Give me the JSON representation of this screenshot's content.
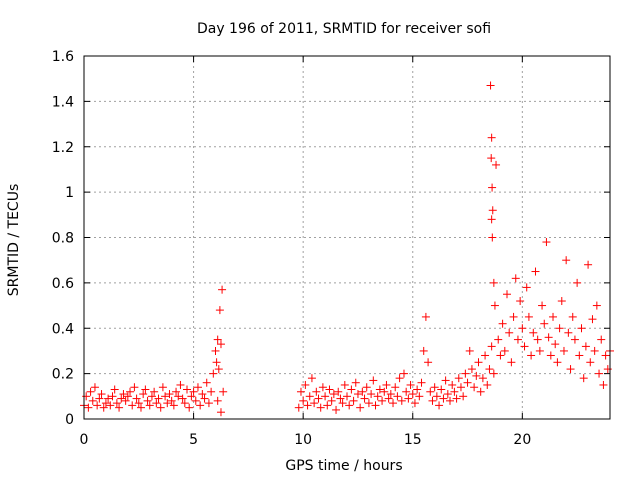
{
  "chart_data": {
    "type": "scatter",
    "title": "Day 196 of 2011, SRMTID for receiver sofi",
    "xlabel": "GPS time / hours",
    "ylabel": "SRMTID / TECUs",
    "xlim": [
      0,
      24
    ],
    "ylim": [
      0,
      1.6
    ],
    "grid": true,
    "marker": "+",
    "color": "#ff0000",
    "x_ticks": [
      {
        "value": 0,
        "label": "0"
      },
      {
        "value": 5,
        "label": "5"
      },
      {
        "value": 10,
        "label": "10"
      },
      {
        "value": 15,
        "label": "15"
      },
      {
        "value": 20,
        "label": "20"
      }
    ],
    "y_ticks": [
      {
        "value": 0,
        "label": "0"
      },
      {
        "value": 0.2,
        "label": "0.2"
      },
      {
        "value": 0.4,
        "label": "0.4"
      },
      {
        "value": 0.6,
        "label": "0.6"
      },
      {
        "value": 0.8,
        "label": "0.8"
      },
      {
        "value": 1,
        "label": "1"
      },
      {
        "value": 1.2,
        "label": "1.2"
      },
      {
        "value": 1.4,
        "label": "1.4"
      },
      {
        "value": 1.6,
        "label": "1.6"
      }
    ],
    "series": [
      {
        "name": "SRMTID",
        "points": [
          [
            0.0,
            0.06
          ],
          [
            0.1,
            0.1
          ],
          [
            0.2,
            0.05
          ],
          [
            0.3,
            0.12
          ],
          [
            0.4,
            0.08
          ],
          [
            0.5,
            0.14
          ],
          [
            0.6,
            0.06
          ],
          [
            0.7,
            0.09
          ],
          [
            0.8,
            0.11
          ],
          [
            0.9,
            0.05
          ],
          [
            1.0,
            0.07
          ],
          [
            1.1,
            0.09
          ],
          [
            1.2,
            0.06
          ],
          [
            1.3,
            0.1
          ],
          [
            1.4,
            0.13
          ],
          [
            1.5,
            0.07
          ],
          [
            1.6,
            0.05
          ],
          [
            1.7,
            0.09
          ],
          [
            1.8,
            0.11
          ],
          [
            1.9,
            0.08
          ],
          [
            2.0,
            0.1
          ],
          [
            2.1,
            0.12
          ],
          [
            2.2,
            0.06
          ],
          [
            2.3,
            0.14
          ],
          [
            2.4,
            0.09
          ],
          [
            2.5,
            0.07
          ],
          [
            2.6,
            0.05
          ],
          [
            2.7,
            0.11
          ],
          [
            2.8,
            0.13
          ],
          [
            2.9,
            0.08
          ],
          [
            3.0,
            0.06
          ],
          [
            3.1,
            0.1
          ],
          [
            3.2,
            0.12
          ],
          [
            3.3,
            0.07
          ],
          [
            3.4,
            0.09
          ],
          [
            3.5,
            0.05
          ],
          [
            3.6,
            0.14
          ],
          [
            3.7,
            0.1
          ],
          [
            3.8,
            0.07
          ],
          [
            3.9,
            0.11
          ],
          [
            4.0,
            0.08
          ],
          [
            4.1,
            0.06
          ],
          [
            4.2,
            0.12
          ],
          [
            4.3,
            0.1
          ],
          [
            4.4,
            0.15
          ],
          [
            4.5,
            0.09
          ],
          [
            4.6,
            0.07
          ],
          [
            4.7,
            0.13
          ],
          [
            4.8,
            0.05
          ],
          [
            4.9,
            0.1
          ],
          [
            5.0,
            0.12
          ],
          [
            5.1,
            0.08
          ],
          [
            5.2,
            0.14
          ],
          [
            5.3,
            0.06
          ],
          [
            5.4,
            0.11
          ],
          [
            5.5,
            0.09
          ],
          [
            5.6,
            0.16
          ],
          [
            5.7,
            0.07
          ],
          [
            5.8,
            0.12
          ],
          [
            5.9,
            0.2
          ],
          [
            6.0,
            0.3
          ],
          [
            6.05,
            0.25
          ],
          [
            6.1,
            0.35
          ],
          [
            6.15,
            0.22
          ],
          [
            6.2,
            0.48
          ],
          [
            6.25,
            0.33
          ],
          [
            6.3,
            0.57
          ],
          [
            6.35,
            0.12
          ],
          [
            6.25,
            0.03
          ],
          [
            6.1,
            0.08
          ],
          [
            9.8,
            0.05
          ],
          [
            9.9,
            0.12
          ],
          [
            10.0,
            0.08
          ],
          [
            10.1,
            0.15
          ],
          [
            10.2,
            0.06
          ],
          [
            10.3,
            0.1
          ],
          [
            10.4,
            0.18
          ],
          [
            10.5,
            0.07
          ],
          [
            10.6,
            0.12
          ],
          [
            10.7,
            0.09
          ],
          [
            10.8,
            0.05
          ],
          [
            10.9,
            0.14
          ],
          [
            11.0,
            0.1
          ],
          [
            11.1,
            0.06
          ],
          [
            11.2,
            0.13
          ],
          [
            11.3,
            0.08
          ],
          [
            11.4,
            0.11
          ],
          [
            11.5,
            0.04
          ],
          [
            11.6,
            0.12
          ],
          [
            11.7,
            0.09
          ],
          [
            11.8,
            0.07
          ],
          [
            11.9,
            0.15
          ],
          [
            12.0,
            0.1
          ],
          [
            12.1,
            0.06
          ],
          [
            12.2,
            0.13
          ],
          [
            12.3,
            0.08
          ],
          [
            12.4,
            0.16
          ],
          [
            12.5,
            0.11
          ],
          [
            12.6,
            0.05
          ],
          [
            12.7,
            0.12
          ],
          [
            12.8,
            0.09
          ],
          [
            12.9,
            0.14
          ],
          [
            13.0,
            0.07
          ],
          [
            13.1,
            0.11
          ],
          [
            13.2,
            0.17
          ],
          [
            13.3,
            0.06
          ],
          [
            13.4,
            0.1
          ],
          [
            13.5,
            0.13
          ],
          [
            13.6,
            0.08
          ],
          [
            13.7,
            0.12
          ],
          [
            13.8,
            0.15
          ],
          [
            13.9,
            0.09
          ],
          [
            14.0,
            0.11
          ],
          [
            14.1,
            0.07
          ],
          [
            14.2,
            0.14
          ],
          [
            14.3,
            0.1
          ],
          [
            14.4,
            0.18
          ],
          [
            14.5,
            0.08
          ],
          [
            14.6,
            0.2
          ],
          [
            14.7,
            0.12
          ],
          [
            14.8,
            0.09
          ],
          [
            14.9,
            0.15
          ],
          [
            15.0,
            0.11
          ],
          [
            15.1,
            0.07
          ],
          [
            15.2,
            0.13
          ],
          [
            15.3,
            0.1
          ],
          [
            15.4,
            0.16
          ],
          [
            15.5,
            0.3
          ],
          [
            15.6,
            0.45
          ],
          [
            15.7,
            0.25
          ],
          [
            15.8,
            0.12
          ],
          [
            15.9,
            0.08
          ],
          [
            16.0,
            0.14
          ],
          [
            16.1,
            0.1
          ],
          [
            16.2,
            0.06
          ],
          [
            16.3,
            0.13
          ],
          [
            16.4,
            0.09
          ],
          [
            16.5,
            0.17
          ],
          [
            16.6,
            0.11
          ],
          [
            16.7,
            0.08
          ],
          [
            16.8,
            0.15
          ],
          [
            16.9,
            0.12
          ],
          [
            17.0,
            0.09
          ],
          [
            17.1,
            0.18
          ],
          [
            17.2,
            0.14
          ],
          [
            17.3,
            0.1
          ],
          [
            17.4,
            0.2
          ],
          [
            17.5,
            0.16
          ],
          [
            17.6,
            0.3
          ],
          [
            17.7,
            0.22
          ],
          [
            17.8,
            0.14
          ],
          [
            17.9,
            0.19
          ],
          [
            18.0,
            0.25
          ],
          [
            18.1,
            0.12
          ],
          [
            18.2,
            0.18
          ],
          [
            18.3,
            0.28
          ],
          [
            18.4,
            0.15
          ],
          [
            18.5,
            0.22
          ],
          [
            18.6,
            0.32
          ],
          [
            18.7,
            0.2
          ],
          [
            18.55,
            1.47
          ],
          [
            18.6,
            1.24
          ],
          [
            18.58,
            1.15
          ],
          [
            18.62,
            1.02
          ],
          [
            18.65,
            0.92
          ],
          [
            18.6,
            0.88
          ],
          [
            18.63,
            0.8
          ],
          [
            18.7,
            0.6
          ],
          [
            18.75,
            0.5
          ],
          [
            18.8,
            1.12
          ],
          [
            18.9,
            0.35
          ],
          [
            19.0,
            0.28
          ],
          [
            19.1,
            0.42
          ],
          [
            19.2,
            0.3
          ],
          [
            19.3,
            0.55
          ],
          [
            19.4,
            0.38
          ],
          [
            19.5,
            0.25
          ],
          [
            19.6,
            0.45
          ],
          [
            19.7,
            0.62
          ],
          [
            19.8,
            0.35
          ],
          [
            19.9,
            0.52
          ],
          [
            20.0,
            0.4
          ],
          [
            20.1,
            0.32
          ],
          [
            20.2,
            0.58
          ],
          [
            20.3,
            0.45
          ],
          [
            20.4,
            0.28
          ],
          [
            20.5,
            0.38
          ],
          [
            20.6,
            0.65
          ],
          [
            20.7,
            0.35
          ],
          [
            20.8,
            0.3
          ],
          [
            20.9,
            0.5
          ],
          [
            21.0,
            0.42
          ],
          [
            21.1,
            0.78
          ],
          [
            21.2,
            0.36
          ],
          [
            21.3,
            0.28
          ],
          [
            21.4,
            0.45
          ],
          [
            21.5,
            0.33
          ],
          [
            21.6,
            0.25
          ],
          [
            21.7,
            0.4
          ],
          [
            21.8,
            0.52
          ],
          [
            21.9,
            0.3
          ],
          [
            22.0,
            0.7
          ],
          [
            22.1,
            0.38
          ],
          [
            22.2,
            0.22
          ],
          [
            22.3,
            0.45
          ],
          [
            22.4,
            0.35
          ],
          [
            22.5,
            0.6
          ],
          [
            22.6,
            0.28
          ],
          [
            22.7,
            0.4
          ],
          [
            22.8,
            0.18
          ],
          [
            22.9,
            0.32
          ],
          [
            23.0,
            0.68
          ],
          [
            23.1,
            0.25
          ],
          [
            23.2,
            0.44
          ],
          [
            23.3,
            0.3
          ],
          [
            23.4,
            0.5
          ],
          [
            23.5,
            0.2
          ],
          [
            23.6,
            0.35
          ],
          [
            23.7,
            0.15
          ],
          [
            23.8,
            0.28
          ],
          [
            23.9,
            0.22
          ],
          [
            24.0,
            0.3
          ]
        ]
      }
    ]
  }
}
